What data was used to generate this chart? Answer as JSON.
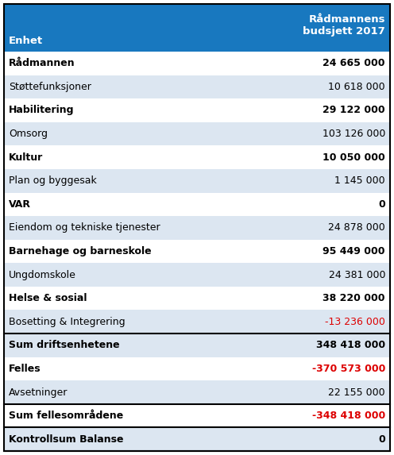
{
  "header_bg": "#1878bf",
  "header_text_color": "#ffffff",
  "header_label_left": "Enhet",
  "header_label_right": "Rådmannens\nbudsjett 2017",
  "rows": [
    {
      "label": "Rådmannen",
      "value": "24 665 000",
      "bold": true,
      "bg": "#ffffff",
      "value_color": "#000000",
      "separator_above": false
    },
    {
      "label": "Støttefunksjoner",
      "value": "10 618 000",
      "bold": false,
      "bg": "#dce6f1",
      "value_color": "#000000",
      "separator_above": false
    },
    {
      "label": "Habilitering",
      "value": "29 122 000",
      "bold": true,
      "bg": "#ffffff",
      "value_color": "#000000",
      "separator_above": false
    },
    {
      "label": "Omsorg",
      "value": "103 126 000",
      "bold": false,
      "bg": "#dce6f1",
      "value_color": "#000000",
      "separator_above": false
    },
    {
      "label": "Kultur",
      "value": "10 050 000",
      "bold": true,
      "bg": "#ffffff",
      "value_color": "#000000",
      "separator_above": false
    },
    {
      "label": "Plan og byggesak",
      "value": "1 145 000",
      "bold": false,
      "bg": "#dce6f1",
      "value_color": "#000000",
      "separator_above": false
    },
    {
      "label": "VAR",
      "value": "0",
      "bold": true,
      "bg": "#ffffff",
      "value_color": "#000000",
      "separator_above": false
    },
    {
      "label": "Eiendom og tekniske tjenester",
      "value": "24 878 000",
      "bold": false,
      "bg": "#dce6f1",
      "value_color": "#000000",
      "separator_above": false
    },
    {
      "label": "Barnehage og barneskole",
      "value": "95 449 000",
      "bold": true,
      "bg": "#ffffff",
      "value_color": "#000000",
      "separator_above": false
    },
    {
      "label": "Ungdomskole",
      "value": "24 381 000",
      "bold": false,
      "bg": "#dce6f1",
      "value_color": "#000000",
      "separator_above": false
    },
    {
      "label": "Helse & sosial",
      "value": "38 220 000",
      "bold": true,
      "bg": "#ffffff",
      "value_color": "#000000",
      "separator_above": false
    },
    {
      "label": "Bosetting & Integrering",
      "value": "-13 236 000",
      "bold": false,
      "bg": "#dce6f1",
      "value_color": "#dd0000",
      "separator_above": false
    },
    {
      "label": "Sum driftsenhetene",
      "value": "348 418 000",
      "bold": true,
      "bg": "#dce6f1",
      "value_color": "#000000",
      "separator_above": true
    },
    {
      "label": "Felles",
      "value": "-370 573 000",
      "bold": true,
      "bg": "#ffffff",
      "value_color": "#dd0000",
      "separator_above": false
    },
    {
      "label": "Avsetninger",
      "value": "22 155 000",
      "bold": false,
      "bg": "#dce6f1",
      "value_color": "#000000",
      "separator_above": false
    },
    {
      "label": "Sum fellesområdene",
      "value": "-348 418 000",
      "bold": true,
      "bg": "#ffffff",
      "value_color": "#dd0000",
      "separator_above": true
    },
    {
      "label": "Kontrollsum Balanse",
      "value": "0",
      "bold": true,
      "bg": "#dce6f1",
      "value_color": "#000000",
      "separator_above": true
    }
  ],
  "fig_w": 4.96,
  "fig_h": 5.73,
  "dpi": 100
}
